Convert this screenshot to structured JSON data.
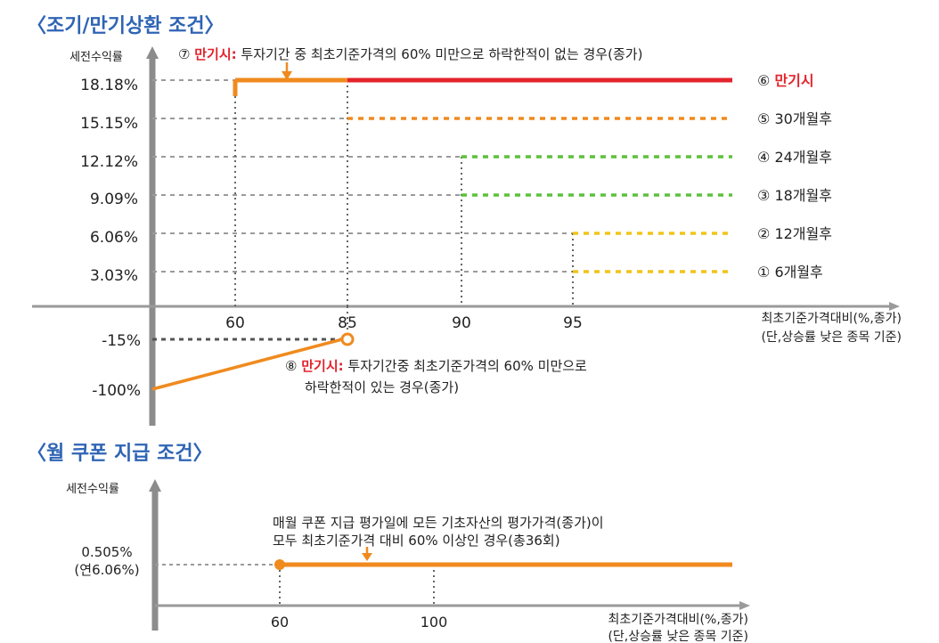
{
  "colors": {
    "title": "#2f64b4",
    "axis": "#8c8c8c",
    "text": "#222222",
    "red": "#e3232c",
    "orange": "#f08a1e",
    "green": "#5cc23c",
    "yellow": "#f2c418",
    "guide": "#9a9a9a",
    "dark_dash": "#555555"
  },
  "redemption": {
    "heading": "〈조기/만기상환 조건〉",
    "y_axis_label": "세전수익률",
    "x_axis_label_line1": "최초기준가격대비(%,종가)",
    "x_axis_label_line2": "(단,상승률 낮은 종목 기준)",
    "x_ticks": [
      "60",
      "85",
      "90",
      "95"
    ],
    "note7_prefix": "⑦ ",
    "note7_highlight": "만기시:",
    "note7_rest": " 투자기간 중 최초기준가격의 60% 미만으로 하락한적이 없는 경우(종가)",
    "note8_prefix": "⑧ ",
    "note8_highlight": "만기시:",
    "note8_line1_rest": " 투자기간중 최초기준가격의 60% 미만으로",
    "note8_line2": "하락한적이 있는 경우(종가)"
  },
  "chart_data": [
    {
      "type": "line",
      "title": "〈조기/만기상환 조건〉",
      "ylabel": "세전수익률",
      "xlabel": "최초기준가격대비(%,종가) (단,상승률 낮은 종목 기준)",
      "x_ticks": [
        60,
        85,
        90,
        95
      ],
      "y_tick_labels": [
        "18.18%",
        "15.15%",
        "12.12%",
        "9.09%",
        "6.06%",
        "3.03%",
        "-15%",
        "-100%"
      ],
      "series": [
        {
          "name": "① 6개월후",
          "threshold_pct": 95,
          "return_label": "3.03%",
          "return": 3.03,
          "color": "yellow",
          "circled": "①",
          "text": "6개월후"
        },
        {
          "name": "② 12개월후",
          "threshold_pct": 95,
          "return_label": "6.06%",
          "return": 6.06,
          "color": "yellow",
          "circled": "②",
          "text": "12개월후"
        },
        {
          "name": "③ 18개월후",
          "threshold_pct": 90,
          "return_label": "9.09%",
          "return": 9.09,
          "color": "green",
          "circled": "③",
          "text": "18개월후"
        },
        {
          "name": "④ 24개월후",
          "threshold_pct": 90,
          "return_label": "12.12%",
          "return": 12.12,
          "color": "green",
          "circled": "④",
          "text": "24개월후"
        },
        {
          "name": "⑤ 30개월후",
          "threshold_pct": 85,
          "return_label": "15.15%",
          "return": 15.15,
          "color": "orange",
          "circled": "⑤",
          "text": "30개월후"
        },
        {
          "name": "⑥ 만기시",
          "threshold_pct": 85,
          "return_label": "18.18%",
          "return": 18.18,
          "color": "red",
          "circled": "⑥",
          "text": "만기시"
        }
      ],
      "maturity_no_knock_in": {
        "from_pct": 60,
        "to_pct": 85,
        "return": 18.18
      },
      "maturity_knock_in": {
        "points": [
          [
            0,
            -100
          ],
          [
            85,
            -15
          ]
        ]
      }
    },
    {
      "type": "line",
      "title": "〈월 쿠폰 지급 조건〉",
      "ylabel": "세전수익률",
      "xlabel": "최초기준가격대비(%,종가) (단,상승률 낮은 종목 기준)",
      "x_ticks": [
        60,
        100
      ],
      "series": [
        {
          "name": "월 쿠폰",
          "from_pct": 60,
          "return": 0.505,
          "annual_return": 6.06
        }
      ]
    }
  ],
  "coupon": {
    "heading": "〈월 쿠폰 지급 조건〉",
    "y_axis_label": "세전수익률",
    "y_value_line1": "0.505%",
    "y_value_line2": "(연6.06%)",
    "x_ticks": [
      "60",
      "100"
    ],
    "note_line1": "매월 쿠폰 지급 평가일에 모든 기초자산의 평가가격(종가)이",
    "note_line2": "모두 최초기준가격 대비 60% 이상인 경우(총36회)",
    "x_axis_label_line1": "최초기준가격대비(%,종가)",
    "x_axis_label_line2": "(단,상승률 낮은 종목 기준)"
  }
}
